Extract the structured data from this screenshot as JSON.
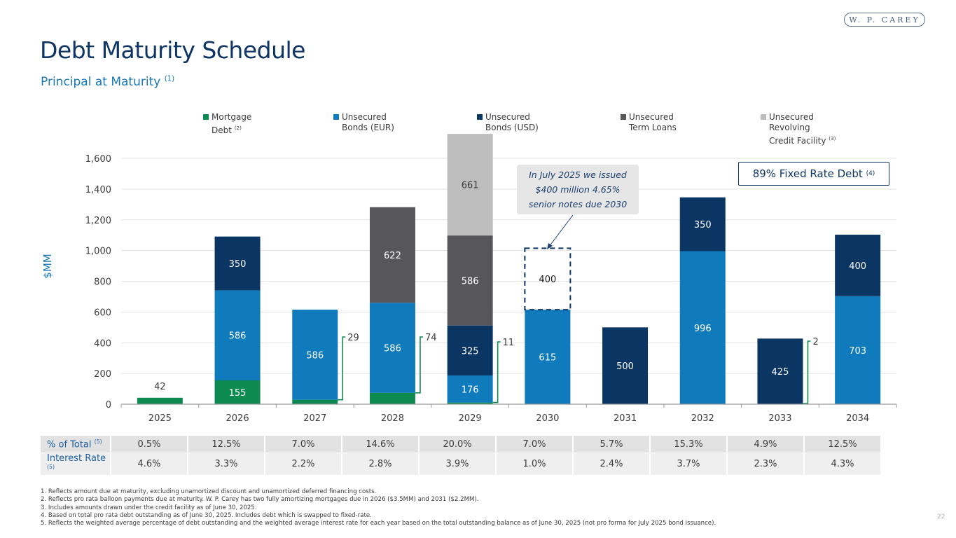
{
  "logo": {
    "text": "W. P. CAREY"
  },
  "title": "Debt Maturity Schedule",
  "subtitle": {
    "text": "Principal at Maturity",
    "note": "(1)"
  },
  "fixed_rate_box": {
    "text": "89% Fixed Rate Debt",
    "note": "(4)"
  },
  "callout": {
    "lines": [
      "In July 2025 we issued",
      "$400 million 4.65%",
      "senior notes due 2030"
    ]
  },
  "legend": [
    {
      "line1": "Mortgage",
      "line2": "Debt",
      "note": "(2)",
      "line3": "",
      "color": "#0c8a50"
    },
    {
      "line1": "Unsecured",
      "line2": "Bonds (EUR)",
      "note": "",
      "line3": "",
      "color": "#0f7bbd"
    },
    {
      "line1": "Unsecured",
      "line2": "Bonds (USD)",
      "note": "",
      "line3": "",
      "color": "#0b3563"
    },
    {
      "line1": "Unsecured",
      "line2": "Term Loans",
      "note": "",
      "line3": "",
      "color": "#57575b"
    },
    {
      "line1": "Unsecured",
      "line2": "Revolving",
      "note": "(3)",
      "line3": "Credit Facility",
      "color": "#bdbdbd"
    }
  ],
  "chart_data": {
    "type": "bar",
    "stacked": true,
    "title": "Principal at Maturity",
    "xlabel": "",
    "ylabel": "$MM",
    "ylim": [
      0,
      1600
    ],
    "yticks": [
      0,
      200,
      400,
      600,
      800,
      1000,
      1200,
      1400,
      1600
    ],
    "ytick_labels": [
      "0",
      "200",
      "400",
      "600",
      "800",
      "1,000",
      "1,200",
      "1,400",
      "1,600"
    ],
    "grid": true,
    "legend_position": "top",
    "categories": [
      "2025",
      "2026",
      "2027",
      "2028",
      "2029",
      "2030",
      "2031",
      "2032",
      "2033",
      "2034"
    ],
    "series": [
      {
        "name": "Mortgage Debt",
        "color": "#0c8a50",
        "values": [
          42,
          155,
          29,
          74,
          11,
          0,
          0,
          0,
          2,
          0
        ]
      },
      {
        "name": "Unsecured Bonds (EUR)",
        "color": "#0f7bbd",
        "values": [
          0,
          586,
          586,
          586,
          176,
          615,
          0,
          996,
          0,
          703
        ]
      },
      {
        "name": "Unsecured Bonds (USD)",
        "color": "#0b3563",
        "values": [
          0,
          350,
          0,
          0,
          325,
          0,
          500,
          350,
          425,
          400
        ]
      },
      {
        "name": "Unsecured Term Loans",
        "color": "#57575b",
        "values": [
          0,
          0,
          0,
          622,
          586,
          0,
          0,
          0,
          0,
          0
        ]
      },
      {
        "name": "Unsecured Revolving Credit Facility",
        "color": "#bdbdbd",
        "values": [
          0,
          0,
          0,
          0,
          661,
          0,
          0,
          0,
          0,
          0
        ]
      }
    ],
    "pro_forma": {
      "category": "2030",
      "series": "Unsecured Bonds (USD)",
      "value": 400,
      "label": "400"
    },
    "bracket_labels": [
      {
        "category": "2027",
        "value": 29,
        "label": "29"
      },
      {
        "category": "2028",
        "value": 74,
        "label": "74"
      },
      {
        "category": "2029",
        "value": 11,
        "label": "11"
      },
      {
        "category": "2033",
        "value": 2,
        "label": "2"
      }
    ],
    "outside_labels": [
      {
        "category": "2025",
        "value": 42,
        "label": "42"
      }
    ]
  },
  "table": {
    "rows": [
      {
        "label": "% of Total",
        "note": "(5)",
        "values": [
          "0.5%",
          "12.5%",
          "7.0%",
          "14.6%",
          "20.0%",
          "7.0%",
          "5.7%",
          "15.3%",
          "4.9%",
          "12.5%"
        ]
      },
      {
        "label": "Interest Rate",
        "note": "(5)",
        "values": [
          "4.6%",
          "3.3%",
          "2.2%",
          "2.8%",
          "3.9%",
          "1.0%",
          "2.4%",
          "3.7%",
          "2.3%",
          "4.3%"
        ]
      }
    ]
  },
  "footnotes": [
    "1. Reflects amount due at maturity, excluding unamortized discount and unamortized deferred financing costs.",
    "2. Reflects pro rata balloon payments due at maturity. W. P. Carey has two fully amortizing mortgages due in 2026 ($3.5MM) and 2031 ($2.2MM).",
    "3. Includes amounts drawn under the credit facility as of June 30, 2025.",
    "4. Based on total pro rata debt outstanding as of June 30, 2025. Includes debt which is swapped to fixed-rate.",
    "5. Reflects the weighted average percentage of debt outstanding and the weighted average interest rate for each year based on the total outstanding balance as of June 30, 2025 (not pro forma for July 2025 bond issuance)."
  ],
  "page_number": "22"
}
